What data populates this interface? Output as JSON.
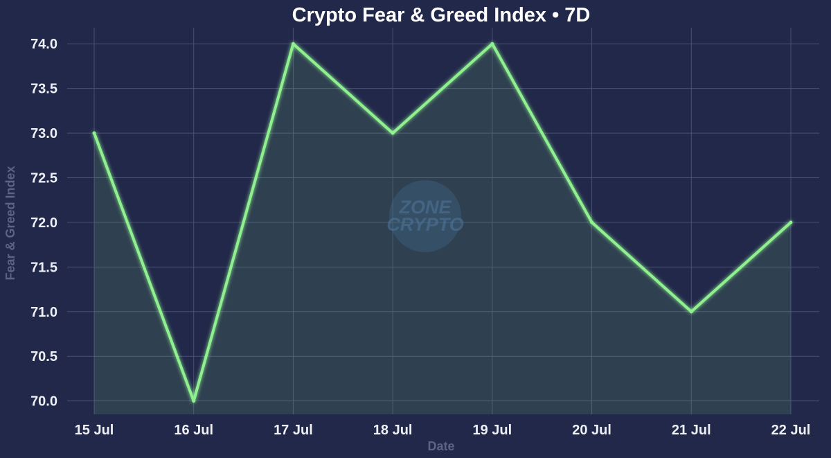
{
  "chart_data": {
    "type": "line",
    "title": "Crypto Fear & Greed Index • 7D",
    "xlabel": "Date",
    "ylabel": "Fear & Greed Index",
    "categories": [
      "15 Jul",
      "16 Jul",
      "17 Jul",
      "18 Jul",
      "19 Jul",
      "20 Jul",
      "21 Jul",
      "22 Jul"
    ],
    "values": [
      73,
      70,
      74,
      73,
      74,
      72,
      71,
      72
    ],
    "ylim": [
      69.85,
      74.18
    ],
    "yticks": [
      70.0,
      70.5,
      71.0,
      71.5,
      72.0,
      72.5,
      73.0,
      73.5,
      74.0
    ],
    "ytick_labels": [
      "70.0",
      "70.5",
      "71.0",
      "71.5",
      "72.0",
      "72.5",
      "73.0",
      "73.5",
      "74.0"
    ],
    "grid": true,
    "area_fill": true,
    "legend": "none"
  },
  "colors": {
    "background": "#22284a",
    "line": "#8ef08e",
    "fill": "#6fb86f",
    "grid": "#4a5175",
    "tick_text": "#eef0f6",
    "axis_label": "#5d6482"
  },
  "watermark": {
    "line1": "ZONE",
    "line2": "CRYPTO"
  }
}
